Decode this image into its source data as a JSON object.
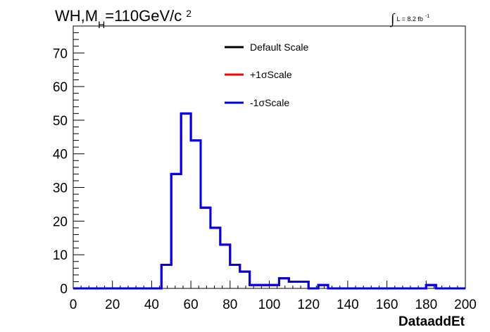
{
  "chart_data": {
    "type": "histogram",
    "title_parts": {
      "main": "WH,M",
      "sub": "H",
      "rest": "=110GeV/c",
      "sup": "2"
    },
    "lumi_parts": {
      "integral": "∫",
      "text": "L = 8.2 fb",
      "sup": "-1"
    },
    "xlabel": "DataaddEt",
    "ylabel": "",
    "xlim": [
      0,
      200
    ],
    "ylim": [
      0,
      78
    ],
    "x_ticks": [
      0,
      20,
      40,
      60,
      80,
      100,
      120,
      140,
      160,
      180,
      200
    ],
    "y_ticks": [
      0,
      10,
      20,
      30,
      40,
      50,
      60,
      70
    ],
    "bin_width": 5,
    "legend_position": "top-center",
    "series": [
      {
        "name": "Default Scale",
        "color": "#000000",
        "values": [
          0,
          0,
          0,
          0,
          0,
          0,
          0,
          0,
          0,
          7,
          34,
          52,
          44,
          24,
          18,
          13,
          7,
          5,
          1,
          1,
          1,
          3,
          2,
          2,
          0,
          1,
          0,
          0,
          0,
          0,
          0,
          0,
          0,
          0,
          0,
          0,
          1,
          0,
          0,
          0
        ]
      },
      {
        "name": "+1σScale",
        "color": "#ff0000",
        "values": [
          0,
          0,
          0,
          0,
          0,
          0,
          0,
          0,
          0,
          7,
          34,
          52,
          44,
          24,
          18,
          13,
          7,
          5,
          1,
          1,
          1,
          3,
          2,
          2,
          0,
          1,
          0,
          0,
          0,
          0,
          0,
          0,
          0,
          0,
          0,
          0,
          1,
          0,
          0,
          0
        ]
      },
      {
        "name": "-1σScale",
        "color": "#0000ee",
        "values": [
          0,
          0,
          0,
          0,
          0,
          0,
          0,
          0,
          0,
          7,
          34,
          52,
          44,
          24,
          18,
          13,
          7,
          5,
          1,
          1,
          1,
          3,
          2,
          2,
          0,
          1,
          0,
          0,
          0,
          0,
          0,
          0,
          0,
          0,
          0,
          0,
          1,
          0,
          0,
          0
        ]
      }
    ]
  }
}
